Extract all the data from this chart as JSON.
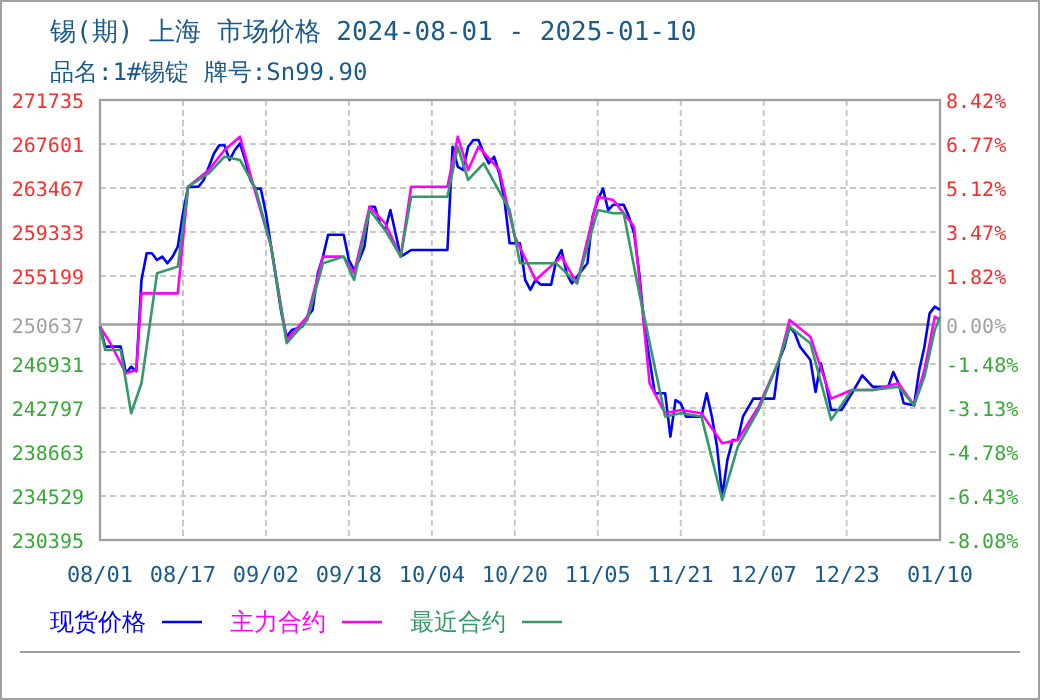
{
  "chart_data": {
    "type": "line",
    "title": "锡(期) 上海 市场价格 2024-08-01 - 2025-01-10",
    "subtitle": "品名:1#锡锭 牌号:Sn99.90",
    "xlim": [
      "2024-08-01",
      "2025-01-10"
    ],
    "xticks": [
      {
        "value": "2024-08-01",
        "label": "08/01"
      },
      {
        "value": "2024-08-17",
        "label": "08/17"
      },
      {
        "value": "2024-09-02",
        "label": "09/02"
      },
      {
        "value": "2024-09-18",
        "label": "09/18"
      },
      {
        "value": "2024-10-04",
        "label": "10/04"
      },
      {
        "value": "2024-10-20",
        "label": "10/20"
      },
      {
        "value": "2024-11-05",
        "label": "11/05"
      },
      {
        "value": "2024-11-21",
        "label": "11/21"
      },
      {
        "value": "2024-12-07",
        "label": "12/07"
      },
      {
        "value": "2024-12-23",
        "label": "12/23"
      },
      {
        "value": "2025-01-10",
        "label": "01/10"
      }
    ],
    "ylim": [
      230395,
      271735
    ],
    "yticks": [
      271735,
      267601,
      263467,
      259333,
      255199,
      250637,
      246931,
      242797,
      238663,
      234529,
      230395
    ],
    "y2lim": [
      -8.08,
      8.42
    ],
    "y2ticks": [
      {
        "value": 8.42,
        "label": "8.42%"
      },
      {
        "value": 6.77,
        "label": "6.77%"
      },
      {
        "value": 5.12,
        "label": "5.12%"
      },
      {
        "value": 3.47,
        "label": "3.47%"
      },
      {
        "value": 1.82,
        "label": "1.82%"
      },
      {
        "value": 0,
        "label": "0.00%"
      },
      {
        "value": -1.48,
        "label": "-1.48%"
      },
      {
        "value": -3.13,
        "label": "-3.13%"
      },
      {
        "value": -4.78,
        "label": "-4.78%"
      },
      {
        "value": -6.43,
        "label": "-6.43%"
      },
      {
        "value": -8.08,
        "label": "-8.08%"
      }
    ],
    "ref_lines": [
      {
        "axis": "y",
        "value": 250637,
        "color": "#a0a0a0"
      }
    ],
    "grid": true,
    "legend": "bottom",
    "line_style": "solid",
    "series": [
      {
        "name": "现货价格",
        "color": "#0000ff",
        "x": [
          "2024-08-01",
          "2024-08-02",
          "2024-08-05",
          "2024-08-06",
          "2024-08-07",
          "2024-08-08",
          "2024-08-09",
          "2024-08-10",
          "2024-08-11",
          "2024-08-12",
          "2024-08-13",
          "2024-08-14",
          "2024-08-15",
          "2024-08-16",
          "2024-08-17",
          "2024-08-18",
          "2024-08-20",
          "2024-08-21",
          "2024-08-22",
          "2024-08-23",
          "2024-08-24",
          "2024-08-25",
          "2024-08-26",
          "2024-08-27",
          "2024-08-28",
          "2024-08-29",
          "2024-08-30",
          "2024-08-31",
          "2024-09-01",
          "2024-09-02",
          "2024-09-03",
          "2024-09-04",
          "2024-09-05",
          "2024-09-06",
          "2024-09-07",
          "2024-09-09",
          "2024-09-10",
          "2024-09-11",
          "2024-09-12",
          "2024-09-13",
          "2024-09-14",
          "2024-09-17",
          "2024-09-18",
          "2024-09-19",
          "2024-09-20",
          "2024-09-21",
          "2024-09-22",
          "2024-09-23",
          "2024-09-24",
          "2024-09-25",
          "2024-09-26",
          "2024-09-27",
          "2024-09-28",
          "2024-09-29",
          "2024-09-30",
          "2024-10-07",
          "2024-10-08",
          "2024-10-09",
          "2024-10-10",
          "2024-10-11",
          "2024-10-12",
          "2024-10-13",
          "2024-10-14",
          "2024-10-15",
          "2024-10-16",
          "2024-10-17",
          "2024-10-18",
          "2024-10-19",
          "2024-10-21",
          "2024-10-22",
          "2024-10-23",
          "2024-10-24",
          "2024-10-25",
          "2024-10-27",
          "2024-10-28",
          "2024-10-29",
          "2024-10-30",
          "2024-10-31",
          "2024-11-01",
          "2024-11-02",
          "2024-11-03",
          "2024-11-04",
          "2024-11-05",
          "2024-11-06",
          "2024-11-07",
          "2024-11-08",
          "2024-11-10",
          "2024-11-11",
          "2024-11-12",
          "2024-11-13",
          "2024-11-14",
          "2024-11-15",
          "2024-11-16",
          "2024-11-18",
          "2024-11-19",
          "2024-11-20",
          "2024-11-21",
          "2024-11-22",
          "2024-11-25",
          "2024-11-26",
          "2024-11-27",
          "2024-11-28",
          "2024-11-29",
          "2024-11-30",
          "2024-12-01",
          "2024-12-02",
          "2024-12-03",
          "2024-12-05",
          "2024-12-09",
          "2024-12-10",
          "2024-12-11",
          "2024-12-12",
          "2024-12-13",
          "2024-12-14",
          "2024-12-16",
          "2024-12-17",
          "2024-12-18",
          "2024-12-19",
          "2024-12-20",
          "2024-12-22",
          "2024-12-24",
          "2024-12-26",
          "2024-12-28",
          "2024-12-31",
          "2025-01-01",
          "2025-01-02",
          "2025-01-03",
          "2025-01-05",
          "2025-01-06",
          "2025-01-07",
          "2025-01-08",
          "2025-01-09",
          "2025-01-10"
        ],
        "values": [
          250440,
          248560,
          248560,
          246060,
          246680,
          246250,
          254830,
          257330,
          257330,
          256700,
          257020,
          256390,
          257020,
          257960,
          261090,
          263590,
          263590,
          264220,
          265470,
          266730,
          267480,
          267480,
          266100,
          267040,
          267660,
          266100,
          264220,
          263410,
          263410,
          261090,
          257960,
          254830,
          251690,
          249500,
          250130,
          250440,
          251380,
          252010,
          255450,
          257020,
          259080,
          259080,
          256700,
          255770,
          256700,
          257960,
          261710,
          261710,
          260150,
          259520,
          261400,
          259210,
          257020,
          257330,
          257640,
          257640,
          267350,
          265470,
          265160,
          267350,
          267980,
          267980,
          266730,
          265790,
          266410,
          264850,
          262340,
          258270,
          258270,
          254830,
          253890,
          254830,
          254390,
          254390,
          256700,
          257640,
          255450,
          254510,
          255140,
          255770,
          256390,
          260780,
          262340,
          263410,
          261400,
          261900,
          261900,
          260780,
          259210,
          255450,
          250440,
          247310,
          244180,
          244180,
          240110,
          243550,
          243240,
          241990,
          241990,
          244180,
          241990,
          239170,
          234470,
          237920,
          239790,
          239790,
          241990,
          243680,
          243680,
          247310,
          248560,
          250440,
          249820,
          248560,
          247310,
          244300,
          247000,
          245120,
          242610,
          242610,
          244180,
          245870,
          244800,
          244800,
          246180,
          245120,
          243240,
          243050,
          246370,
          248560,
          251690,
          252320,
          252010
        ]
      },
      {
        "name": "主力合约",
        "color": "#ff00ff",
        "x": [
          "2024-08-01",
          "2024-08-03",
          "2024-08-06",
          "2024-08-08",
          "2024-08-09",
          "2024-08-16",
          "2024-08-18",
          "2024-08-22",
          "2024-08-25",
          "2024-08-28",
          "2024-08-31",
          "2024-09-03",
          "2024-09-06",
          "2024-09-10",
          "2024-09-13",
          "2024-09-17",
          "2024-09-19",
          "2024-09-22",
          "2024-09-25",
          "2024-09-28",
          "2024-09-30",
          "2024-10-07",
          "2024-10-09",
          "2024-10-11",
          "2024-10-13",
          "2024-10-17",
          "2024-10-20",
          "2024-10-24",
          "2024-10-29",
          "2024-11-01",
          "2024-11-05",
          "2024-11-08",
          "2024-11-12",
          "2024-11-15",
          "2024-11-18",
          "2024-11-21",
          "2024-11-25",
          "2024-11-29",
          "2024-12-02",
          "2024-12-06",
          "2024-12-10",
          "2024-12-12",
          "2024-12-16",
          "2024-12-20",
          "2024-12-24",
          "2024-12-28",
          "2025-01-02",
          "2025-01-05",
          "2025-01-07",
          "2025-01-09",
          "2025-01-10"
        ],
        "values": [
          250440,
          248880,
          246060,
          246370,
          253570,
          253570,
          263590,
          265160,
          267040,
          268290,
          262970,
          257960,
          249190,
          251380,
          257020,
          257020,
          255450,
          261710,
          260150,
          257020,
          263590,
          263590,
          268290,
          265160,
          267350,
          265160,
          258900,
          254830,
          257020,
          254510,
          262650,
          262340,
          259840,
          245120,
          242300,
          242610,
          242300,
          239480,
          239790,
          242920,
          247310,
          251070,
          249500,
          243680,
          244490,
          244490,
          245120,
          243050,
          246370,
          251380,
          251070
        ]
      },
      {
        "name": "最近合约",
        "color": "#339966",
        "x": [
          "2024-08-01",
          "2024-08-02",
          "2024-08-05",
          "2024-08-07",
          "2024-08-09",
          "2024-08-12",
          "2024-08-16",
          "2024-08-18",
          "2024-08-22",
          "2024-08-25",
          "2024-08-28",
          "2024-08-31",
          "2024-09-03",
          "2024-09-06",
          "2024-09-10",
          "2024-09-13",
          "2024-09-17",
          "2024-09-19",
          "2024-09-22",
          "2024-09-25",
          "2024-09-28",
          "2024-09-30",
          "2024-10-07",
          "2024-10-09",
          "2024-10-11",
          "2024-10-14",
          "2024-10-19",
          "2024-10-21",
          "2024-10-28",
          "2024-11-01",
          "2024-11-05",
          "2024-11-08",
          "2024-11-10",
          "2024-11-13",
          "2024-11-18",
          "2024-11-21",
          "2024-11-25",
          "2024-11-29",
          "2024-12-02",
          "2024-12-06",
          "2024-12-10",
          "2024-12-12",
          "2024-12-16",
          "2024-12-20",
          "2024-12-24",
          "2024-12-28",
          "2025-01-02",
          "2025-01-05",
          "2025-01-07",
          "2025-01-09",
          "2025-01-10"
        ],
        "values": [
          250440,
          248250,
          248250,
          242300,
          245120,
          255450,
          256080,
          263590,
          264850,
          266410,
          266100,
          263410,
          257960,
          248880,
          251070,
          256390,
          257020,
          254830,
          261400,
          259520,
          257020,
          262650,
          262650,
          267350,
          264220,
          265790,
          261400,
          256390,
          256390,
          254510,
          261400,
          261090,
          261090,
          253570,
          241990,
          242300,
          241990,
          234160,
          239170,
          242610,
          247310,
          250440,
          248880,
          241680,
          244490,
          244490,
          244800,
          243050,
          245740,
          250130,
          251380
        ]
      }
    ]
  }
}
